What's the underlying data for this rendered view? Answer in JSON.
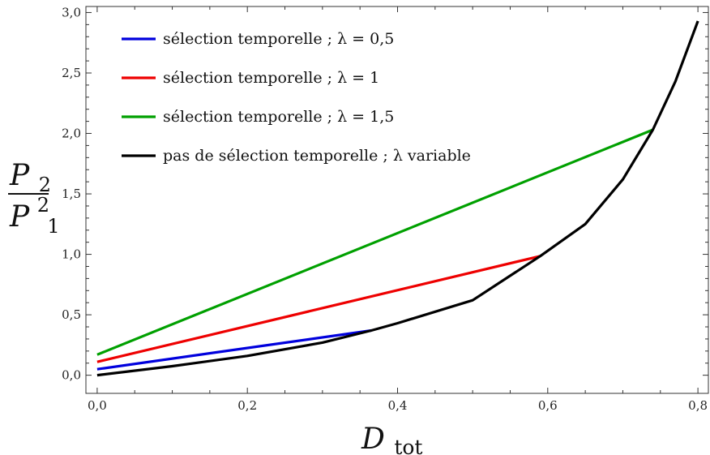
{
  "chart_data": {
    "type": "line",
    "xlabel": {
      "main": "D",
      "sub": "tot"
    },
    "ylabel": {
      "num_main": "P",
      "num_sub": "2",
      "den_main": "P",
      "den_sub": "1",
      "den_sup": "2"
    },
    "xlim": [
      -0.015,
      0.815
    ],
    "ylim": [
      -0.15,
      3.05
    ],
    "x_ticks": [
      0.0,
      0.2,
      0.4,
      0.6,
      0.8
    ],
    "x_tick_labels": [
      "0,0",
      "0,2",
      "0,4",
      "0,6",
      "0,8"
    ],
    "y_ticks": [
      0.0,
      0.5,
      1.0,
      1.5,
      2.0,
      2.5,
      3.0
    ],
    "y_tick_labels": [
      "0,0",
      "0,5",
      "1,0",
      "1,5",
      "2,0",
      "2,5",
      "3,0"
    ],
    "grid": false,
    "legend_position": "top-left",
    "series": [
      {
        "name": "sélection temporelle ; λ = 0,5",
        "color": "#0000dd",
        "x": [
          0.0,
          0.365
        ],
        "y": [
          0.05,
          0.37
        ]
      },
      {
        "name": "sélection temporelle ; λ = 1",
        "color": "#ee0000",
        "x": [
          0.0,
          0.59
        ],
        "y": [
          0.11,
          0.985
        ]
      },
      {
        "name": "sélection temporelle ; λ = 1,5",
        "color": "#00a000",
        "x": [
          0.0,
          0.74
        ],
        "y": [
          0.17,
          2.03
        ]
      },
      {
        "name": "pas de sélection temporelle ; λ variable",
        "color": "#000000",
        "x": [
          0.0,
          0.1,
          0.2,
          0.3,
          0.365,
          0.4,
          0.5,
          0.59,
          0.65,
          0.7,
          0.74,
          0.77,
          0.8
        ],
        "y": [
          0.0,
          0.075,
          0.16,
          0.27,
          0.37,
          0.43,
          0.62,
          0.985,
          1.25,
          1.62,
          2.03,
          2.43,
          2.93
        ]
      }
    ]
  }
}
